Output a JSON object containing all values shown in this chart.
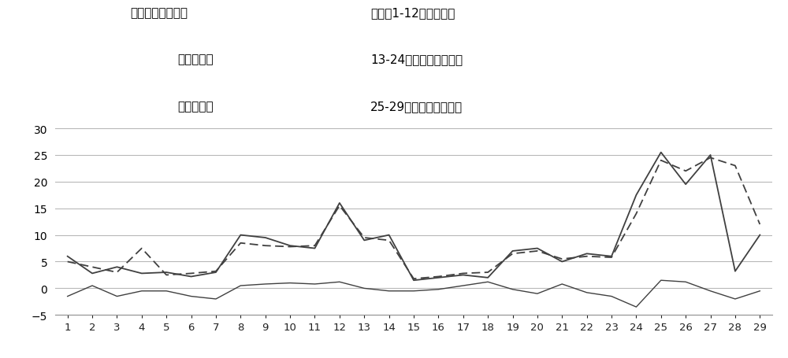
{
  "x": [
    1,
    2,
    3,
    4,
    5,
    6,
    7,
    8,
    9,
    10,
    11,
    12,
    13,
    14,
    15,
    16,
    17,
    18,
    19,
    20,
    21,
    22,
    23,
    24,
    25,
    26,
    27,
    28,
    29
  ],
  "predicted": [
    6.0,
    2.8,
    4.0,
    2.8,
    3.0,
    2.2,
    3.0,
    10.0,
    9.5,
    8.0,
    7.5,
    16.0,
    9.0,
    10.0,
    1.5,
    2.0,
    2.5,
    2.0,
    7.0,
    7.5,
    5.0,
    6.5,
    6.0,
    17.5,
    25.5,
    19.5,
    25.0,
    3.2,
    10.0
  ],
  "actual": [
    5.0,
    4.0,
    3.0,
    7.5,
    2.5,
    2.8,
    3.2,
    8.5,
    8.0,
    7.8,
    8.0,
    15.5,
    9.5,
    9.0,
    1.8,
    2.2,
    2.8,
    3.0,
    6.5,
    7.0,
    5.5,
    6.0,
    5.8,
    14.0,
    24.0,
    22.0,
    24.5,
    23.0,
    12.0
  ],
  "error": [
    -1.5,
    0.5,
    -1.5,
    -0.5,
    -0.5,
    -1.5,
    -2.0,
    0.5,
    0.8,
    1.0,
    0.8,
    1.2,
    0.0,
    -0.5,
    -0.5,
    -0.2,
    0.5,
    1.2,
    -0.2,
    -1.0,
    0.8,
    -0.8,
    -1.5,
    -3.5,
    1.5,
    1.2,
    -0.5,
    -2.0,
    -0.5
  ],
  "ann_L1": "说明：实线为预测",
  "ann_L2": "虚线为实测",
  "ann_L3": "曲线为误差",
  "ann_R1": "说明：1-12为冷冬模型",
  "ann_R2": "13-24为低基数暖冬模型",
  "ann_R3": "25-29为高基数暖冬模型",
  "ylim": [
    -5,
    32
  ],
  "yticks": [
    -5,
    0,
    5,
    10,
    15,
    20,
    25,
    30
  ],
  "line_color": "#404040",
  "bg_color": "#ffffff",
  "grid_color": "#b8b8b8",
  "font_size_annotation": 11,
  "font_size_tick": 9.5
}
